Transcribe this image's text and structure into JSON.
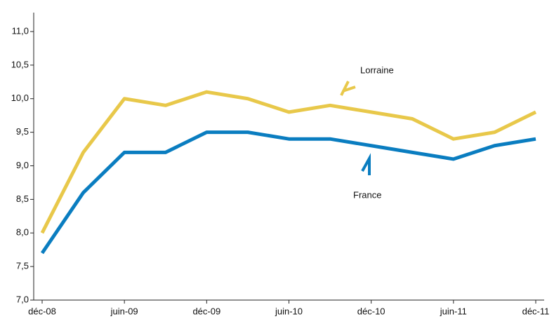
{
  "chart_data": {
    "type": "line",
    "categories": [
      "déc-08",
      null,
      "juin-09",
      null,
      "déc-09",
      null,
      "juin-10",
      null,
      "déc-10",
      null,
      "juin-11",
      null,
      "déc-11"
    ],
    "series": [
      {
        "name": "Lorraine",
        "color": "#e8c84a",
        "values": [
          8.0,
          9.2,
          10.0,
          9.9,
          10.1,
          10.0,
          9.8,
          9.9,
          9.8,
          9.7,
          9.4,
          9.5,
          9.8
        ]
      },
      {
        "name": "France",
        "color": "#0a7dc0",
        "values": [
          7.7,
          8.6,
          9.2,
          9.2,
          9.5,
          9.5,
          9.4,
          9.4,
          9.3,
          9.2,
          9.1,
          9.3,
          9.4
        ]
      }
    ],
    "ylim": [
      7,
      11
    ],
    "yticks": [
      {
        "value": 7,
        "label": "7,0"
      },
      {
        "value": 7.5,
        "label": "7,5"
      },
      {
        "value": 8,
        "label": "8,0"
      },
      {
        "value": 8.5,
        "label": "8,5"
      },
      {
        "value": 9,
        "label": "9,0"
      },
      {
        "value": 9.5,
        "label": "9,5"
      },
      {
        "value": 10,
        "label": "10,0"
      },
      {
        "value": 10.5,
        "label": "10,5"
      },
      {
        "value": 11,
        "label": "11,0"
      }
    ],
    "grid": false
  }
}
